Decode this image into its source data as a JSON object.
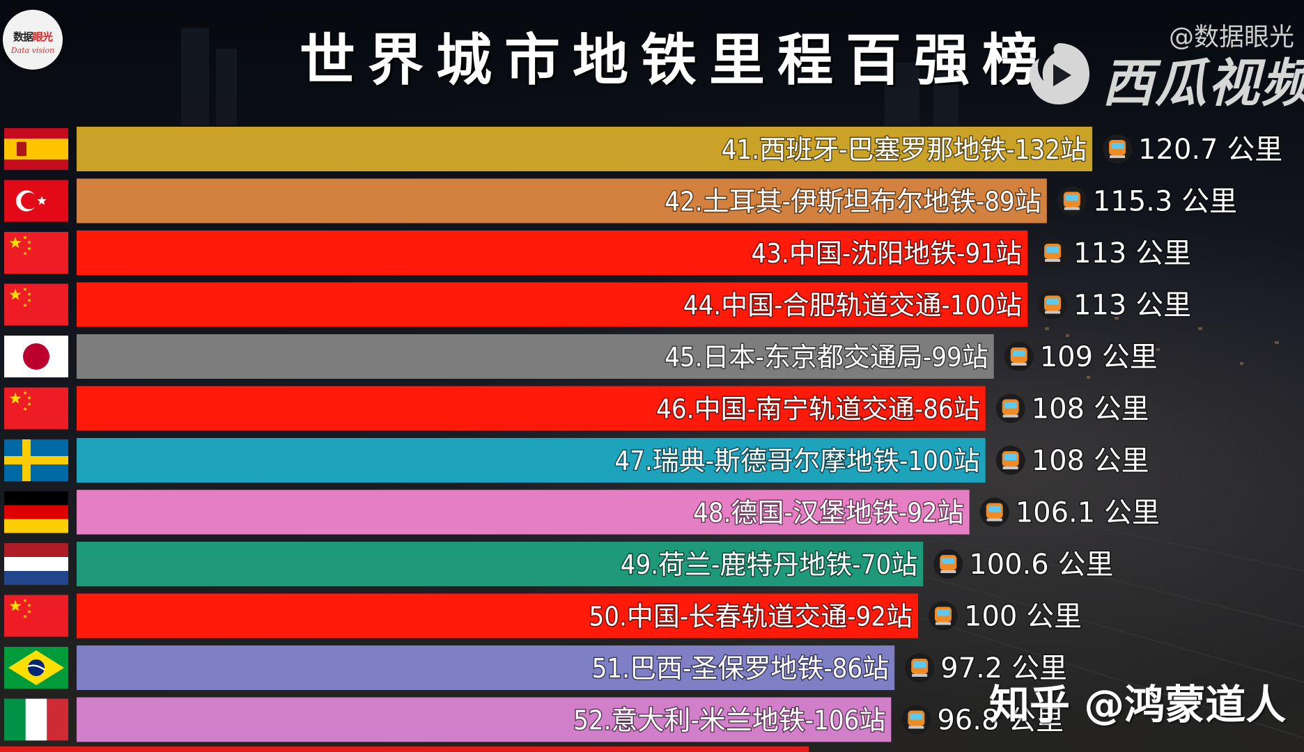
{
  "header": {
    "logo_text_a": "数据",
    "logo_text_b": "眼光",
    "logo_sub": "Data vision",
    "title": "世界城市地铁里程百强榜"
  },
  "watermarks": {
    "handle": "@数据眼光",
    "platform": "西瓜视频",
    "zhihu": "知乎 @鸿蒙道人"
  },
  "colors": {
    "spain": "#c9a227",
    "turkey": "#d2813f",
    "china": "#ff1a0a",
    "japan": "#7d7d7d",
    "sweden": "#1ea3bd",
    "germany": "#e67ec4",
    "netherlands": "#1e9a7b",
    "brazil": "#7f7fc6",
    "italy": "#d27fc9",
    "progress": "#e21b1b"
  },
  "progress_fraction": 0.62,
  "chart_data": {
    "type": "bar",
    "orientation": "horizontal",
    "unit": "公里",
    "bars": [
      {
        "label": "41.西班牙-巴塞罗那地铁-132站",
        "value": 120.7,
        "value_text": "120.7 公里",
        "flag": "spain",
        "color": "#c9a227"
      },
      {
        "label": "42.土耳其-伊斯坦布尔地铁-89站",
        "value": 115.3,
        "value_text": "115.3 公里",
        "flag": "turkey",
        "color": "#d2813f"
      },
      {
        "label": "43.中国-沈阳地铁-91站",
        "value": 113,
        "value_text": "113 公里",
        "flag": "china",
        "color": "#ff1a0a"
      },
      {
        "label": "44.中国-合肥轨道交通-100站",
        "value": 113,
        "value_text": "113 公里",
        "flag": "china",
        "color": "#ff1a0a"
      },
      {
        "label": "45.日本-东京都交通局-99站",
        "value": 109,
        "value_text": "109 公里",
        "flag": "japan",
        "color": "#7d7d7d"
      },
      {
        "label": "46.中国-南宁轨道交通-86站",
        "value": 108,
        "value_text": "108 公里",
        "flag": "china",
        "color": "#ff1a0a"
      },
      {
        "label": "47.瑞典-斯德哥尔摩地铁-100站",
        "value": 108,
        "value_text": "108 公里",
        "flag": "sweden",
        "color": "#1ea3bd"
      },
      {
        "label": "48.德国-汉堡地铁-92站",
        "value": 106.1,
        "value_text": "106.1 公里",
        "flag": "germany",
        "color": "#e67ec4"
      },
      {
        "label": "49.荷兰-鹿特丹地铁-70站",
        "value": 100.6,
        "value_text": "100.6 公里",
        "flag": "netherlands",
        "color": "#1e9a7b"
      },
      {
        "label": "50.中国-长春轨道交通-92站",
        "value": 100,
        "value_text": "100 公里",
        "flag": "china",
        "color": "#ff1a0a"
      },
      {
        "label": "51.巴西-圣保罗地铁-86站",
        "value": 97.2,
        "value_text": "97.2 公里",
        "flag": "brazil",
        "color": "#7f7fc6"
      },
      {
        "label": "52.意大利-米兰地铁-106站",
        "value": 96.8,
        "value_text": "96.8 公里",
        "flag": "italy",
        "color": "#d27fc9"
      }
    ]
  }
}
